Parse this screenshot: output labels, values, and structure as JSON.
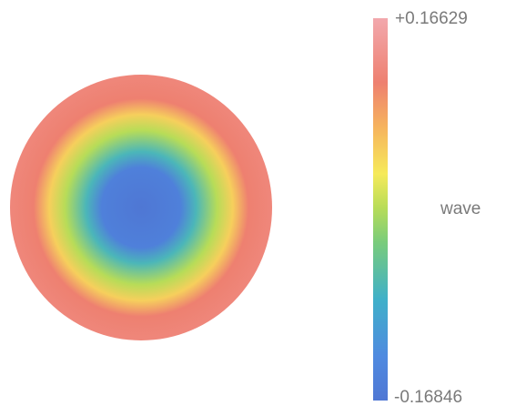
{
  "chart_data": {
    "type": "heatmap",
    "colorbar": {
      "label": "wave",
      "max_label": "+0.16629",
      "min_label": "-0.16846",
      "max_value": 0.16629,
      "min_value": -0.16846,
      "stops": [
        {
          "value": -0.16846,
          "color": "#4f77d4"
        },
        {
          "value": -0.13,
          "color": "#4f8ae0"
        },
        {
          "value": -0.08,
          "color": "#3fb0c9"
        },
        {
          "value": -0.03,
          "color": "#79cc7b"
        },
        {
          "value": 0.0,
          "color": "#b7dc58"
        },
        {
          "value": 0.03,
          "color": "#f6ea5a"
        },
        {
          "value": 0.07,
          "color": "#f6b45d"
        },
        {
          "value": 0.11,
          "color": "#ee8070"
        },
        {
          "value": 0.16629,
          "color": "#f2a8ad"
        }
      ]
    },
    "radial_profile": [
      {
        "r": 0.0,
        "value": -0.16846
      },
      {
        "r": 0.3,
        "value": -0.15
      },
      {
        "r": 0.42,
        "value": -0.07
      },
      {
        "r": 0.58,
        "value": 0.0
      },
      {
        "r": 0.7,
        "value": 0.05
      },
      {
        "r": 0.82,
        "value": 0.11
      },
      {
        "r": 1.0,
        "value": 0.12
      }
    ]
  }
}
